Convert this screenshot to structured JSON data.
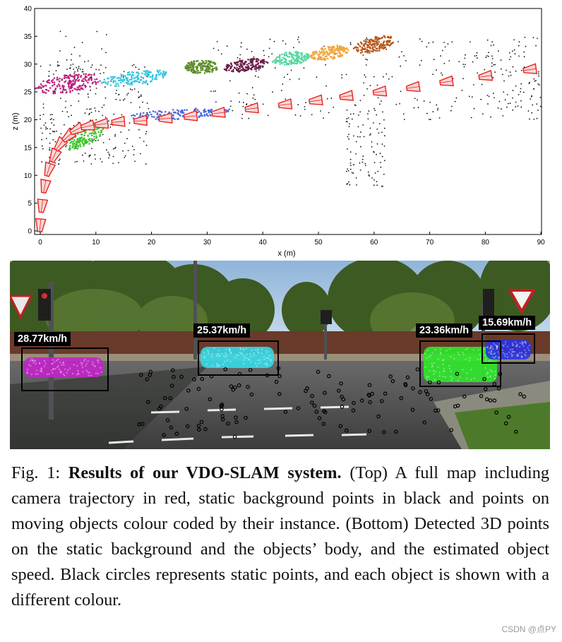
{
  "figure": {
    "plot": {
      "chart_data": {
        "type": "scatter",
        "xlabel": "x (m)",
        "ylabel": "z (m)",
        "xlim": [
          0,
          90
        ],
        "ylim": [
          0,
          40
        ],
        "xticks": [
          "0",
          "10",
          "20",
          "30",
          "40",
          "50",
          "60",
          "70",
          "80",
          "90"
        ],
        "yticks": [
          "0",
          "5",
          "10",
          "15",
          "20",
          "25",
          "30",
          "35",
          "40"
        ],
        "series": [
          {
            "name": "camera trajectory",
            "color": "#e8221e",
            "points": [
              [
                0,
                1
              ],
              [
                0.3,
                4.5
              ],
              [
                0.8,
                8
              ],
              [
                1.5,
                11
              ],
              [
                2.5,
                13.5
              ],
              [
                3.5,
                15.5
              ],
              [
                5,
                17
              ],
              [
                6.5,
                18.2
              ],
              [
                8.5,
                18.8
              ],
              [
                11,
                19.2
              ],
              [
                14,
                19.6
              ],
              [
                18,
                19.8
              ],
              [
                22.5,
                20.2
              ],
              [
                27,
                20.6
              ],
              [
                32,
                21.2
              ],
              [
                38,
                22
              ],
              [
                44,
                22.7
              ],
              [
                49.5,
                23.4
              ],
              [
                55,
                24.2
              ],
              [
                61,
                25
              ],
              [
                67,
                25.8
              ],
              [
                73,
                26.8
              ],
              [
                80,
                27.8
              ],
              [
                88,
                29
              ]
            ]
          },
          {
            "name": "static background points",
            "color": "#111111"
          },
          {
            "name": "object 1",
            "color": "#c0207f",
            "center": [
              5,
              26.5
            ]
          },
          {
            "name": "object 2",
            "color": "#37c5e0",
            "center": [
              17,
              27.5
            ]
          },
          {
            "name": "object 3",
            "color": "#5e8d2c",
            "center": [
              29,
              29.5
            ]
          },
          {
            "name": "object 4",
            "color": "#6b1f4a",
            "center": [
              37,
              29.8
            ]
          },
          {
            "name": "object 5",
            "color": "#59d7a3",
            "center": [
              45,
              31
            ]
          },
          {
            "name": "object 6",
            "color": "#f4a73b",
            "center": [
              52,
              32
            ]
          },
          {
            "name": "object 7",
            "color": "#b9581e",
            "center": [
              60,
              33.5
            ]
          },
          {
            "name": "object 8",
            "color": "#4b67e0",
            "center": [
              25,
              21
            ]
          },
          {
            "name": "object 9",
            "color": "#3cc92b",
            "center": [
              8,
              17
            ]
          }
        ]
      }
    },
    "photo": {
      "detections": [
        {
          "speed": "28.77km/h",
          "color": "#c224c9"
        },
        {
          "speed": "25.37km/h",
          "color": "#35d9e8"
        },
        {
          "speed": "23.36km/h",
          "color": "#2ee82a"
        },
        {
          "speed": "15.69km/h",
          "color": "#2a33e0"
        }
      ]
    },
    "caption": {
      "label": "Fig. 1:",
      "title": "Results of our VDO-SLAM system.",
      "body": "(Top) A full map including camera trajectory in red, static background points in black and points on moving objects colour coded by their instance. (Bottom) Detected 3D points on the static background and the objects’ body, and the estimated object speed. Black circles represents static points, and each object is shown with a different colour."
    },
    "watermark": "CSDN @点PY"
  }
}
